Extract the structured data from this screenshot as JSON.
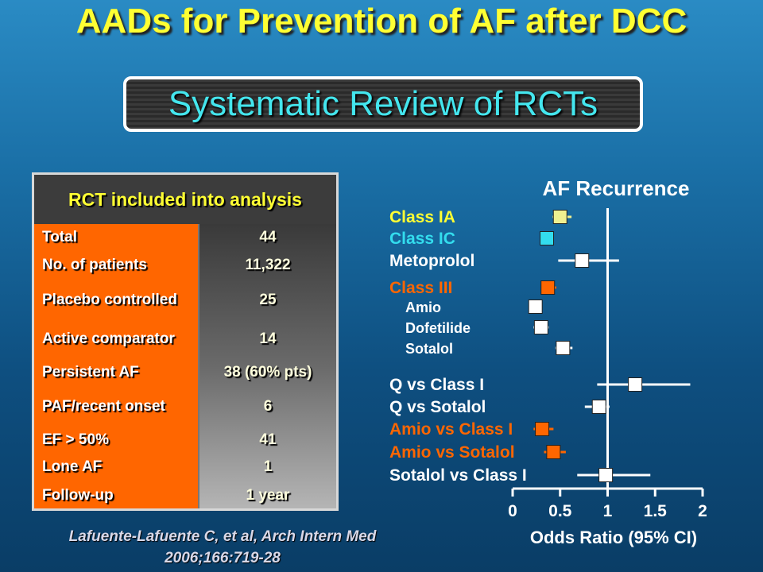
{
  "slide": {
    "title": "AADs for Prevention of AF after DCC",
    "subtitle": "Systematic Review of RCTs",
    "citation_line1": "Lafuente-Lafuente C, et al, Arch Intern Med",
    "citation_line2": "2006;166:719-28"
  },
  "table": {
    "header": "RCT included into analysis",
    "rows": [
      {
        "label": "Total",
        "value": "44"
      },
      {
        "label": "No. of patients",
        "value": "11,322"
      },
      {
        "label": "Placebo controlled",
        "value": "25"
      },
      {
        "label": "Active comparator",
        "value": "14"
      },
      {
        "label": "Persistent AF",
        "value": "38 (60% pts)"
      },
      {
        "label": "PAF/recent onset",
        "value": "6"
      },
      {
        "label": "EF > 50%",
        "value": "41"
      },
      {
        "label": "Lone AF",
        "value": "1"
      },
      {
        "label": "Follow-up",
        "value": "1 year"
      }
    ]
  },
  "colors": {
    "yellow": "#ffff33",
    "cyan": "#33ddee",
    "orange": "#ff6600",
    "white": "#ffffff",
    "light_yellow": "#f0f090"
  },
  "chart_data": {
    "type": "forest",
    "title": "AF Recurrence",
    "xlabel": "Odds Ratio (95% CI)",
    "xlim": [
      0,
      2
    ],
    "xticks": [
      "0",
      "0.5",
      "1",
      "1.5",
      "2"
    ],
    "reference_line": 1,
    "rows": [
      {
        "label": "Class IA",
        "or": 0.5,
        "ci": [
          0.42,
          0.62
        ],
        "color": "#ffff33",
        "marker_color": "#f0f090",
        "indent": false
      },
      {
        "label": "Class IC",
        "or": 0.36,
        "ci": [
          0.3,
          0.42
        ],
        "color": "#33ddee",
        "marker_color": "#33ddee",
        "indent": false
      },
      {
        "label": "Metoprolol",
        "or": 0.73,
        "ci": [
          0.48,
          1.12
        ],
        "color": "#ffffff",
        "marker_color": "#ffffff",
        "indent": false
      },
      {
        "label": "Class III",
        "or": 0.37,
        "ci": [
          0.31,
          0.46
        ],
        "color": "#ff6600",
        "marker_color": "#ff6600",
        "indent": false
      },
      {
        "label": "Amio",
        "or": 0.24,
        "ci": [
          0.17,
          0.31
        ],
        "color": "#ffffff",
        "marker_color": "#ffffff",
        "indent": true
      },
      {
        "label": "Dofetilide",
        "or": 0.3,
        "ci": [
          0.22,
          0.38
        ],
        "color": "#ffffff",
        "marker_color": "#ffffff",
        "indent": true
      },
      {
        "label": "Sotalol",
        "or": 0.53,
        "ci": [
          0.45,
          0.63
        ],
        "color": "#ffffff",
        "marker_color": "#ffffff",
        "indent": true
      },
      {
        "label": "Q vs Class I",
        "or": 1.29,
        "ci": [
          0.89,
          1.87
        ],
        "color": "#ffffff",
        "marker_color": "#ffffff",
        "indent": false
      },
      {
        "label": "Q vs Sotalol",
        "or": 0.91,
        "ci": [
          0.76,
          1.02
        ],
        "color": "#ffffff",
        "marker_color": "#ffffff",
        "indent": false
      },
      {
        "label": "Amio vs Class I",
        "or": 0.31,
        "ci": [
          0.22,
          0.43
        ],
        "color": "#ff6600",
        "marker_color": "#ff6600",
        "indent": false
      },
      {
        "label": "Amio vs Sotalol",
        "or": 0.43,
        "ci": [
          0.33,
          0.56
        ],
        "color": "#ff6600",
        "marker_color": "#ff6600",
        "indent": false
      },
      {
        "label": "Sotalol vs Class I",
        "or": 0.98,
        "ci": [
          0.68,
          1.45
        ],
        "color": "#ffffff",
        "marker_color": "#ffffff",
        "indent": false
      }
    ]
  }
}
